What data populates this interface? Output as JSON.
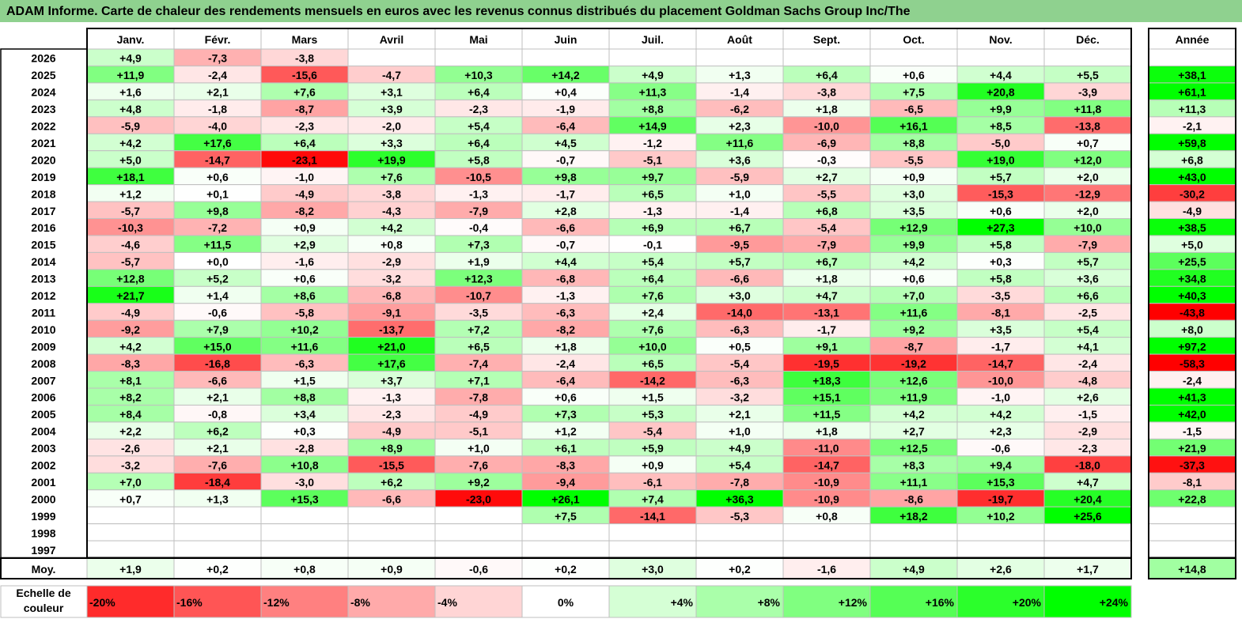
{
  "title": "ADAM Informe. Carte de chaleur des rendements mensuels en euros avec les revenus connus distribués du placement Goldman Sachs Group Inc/The",
  "chart_data": {
    "type": "heatmap",
    "title": "ADAM Informe. Carte de chaleur des rendements mensuels en euros avec les revenus connus distribués du placement Goldman Sachs Group Inc/The",
    "columns": [
      "Janv.",
      "Févr.",
      "Mars",
      "Avril",
      "Mai",
      "Juin",
      "Juil.",
      "Août",
      "Sept.",
      "Oct.",
      "Nov.",
      "Déc."
    ],
    "year_column": "Année",
    "rows": [
      {
        "year": "2026",
        "values": [
          4.9,
          -7.3,
          -3.8,
          null,
          null,
          null,
          null,
          null,
          null,
          null,
          null,
          null
        ],
        "total": null
      },
      {
        "year": "2025",
        "values": [
          11.9,
          -2.4,
          -15.6,
          -4.7,
          10.3,
          14.2,
          4.9,
          1.3,
          6.4,
          0.6,
          4.4,
          5.5
        ],
        "total": 38.1
      },
      {
        "year": "2024",
        "values": [
          1.6,
          2.1,
          7.6,
          3.1,
          6.4,
          0.4,
          11.3,
          -1.4,
          -3.8,
          7.5,
          20.8,
          -3.9
        ],
        "total": 61.1
      },
      {
        "year": "2023",
        "values": [
          4.8,
          -1.8,
          -8.7,
          3.9,
          -2.3,
          -1.9,
          8.8,
          -6.2,
          1.8,
          -6.5,
          9.9,
          11.8
        ],
        "total": 11.3
      },
      {
        "year": "2022",
        "values": [
          -5.9,
          -4.0,
          -2.3,
          -2.0,
          5.4,
          -6.4,
          14.9,
          2.3,
          -10.0,
          16.1,
          8.5,
          -13.8
        ],
        "total": -2.1
      },
      {
        "year": "2021",
        "values": [
          4.2,
          17.6,
          6.4,
          3.3,
          6.4,
          4.5,
          -1.2,
          11.6,
          -6.9,
          8.8,
          -5.0,
          0.7
        ],
        "total": 59.8
      },
      {
        "year": "2020",
        "values": [
          5.0,
          -14.7,
          -23.1,
          19.9,
          5.8,
          -0.7,
          -5.1,
          3.6,
          -0.3,
          -5.5,
          19.0,
          12.0
        ],
        "total": 6.8
      },
      {
        "year": "2019",
        "values": [
          18.1,
          0.6,
          -1.0,
          7.6,
          -10.5,
          9.8,
          9.7,
          -5.9,
          2.7,
          0.9,
          5.7,
          2.0
        ],
        "total": 43.0
      },
      {
        "year": "2018",
        "values": [
          1.2,
          0.1,
          -4.9,
          -3.8,
          -1.3,
          -1.7,
          6.5,
          1.0,
          -5.5,
          3.0,
          -15.3,
          -12.9
        ],
        "total": -30.2
      },
      {
        "year": "2017",
        "values": [
          -5.7,
          9.8,
          -8.2,
          -4.3,
          -7.9,
          2.8,
          -1.3,
          -1.4,
          6.8,
          3.5,
          0.6,
          2.0
        ],
        "total": -4.9
      },
      {
        "year": "2016",
        "values": [
          -10.3,
          -7.2,
          0.9,
          4.2,
          -0.4,
          -6.6,
          6.9,
          6.7,
          -5.4,
          12.9,
          27.3,
          10.0
        ],
        "total": 38.5
      },
      {
        "year": "2015",
        "values": [
          -4.6,
          11.5,
          2.9,
          0.8,
          7.3,
          -0.7,
          -0.1,
          -9.5,
          -7.9,
          9.9,
          5.8,
          -7.9
        ],
        "total": 5.0
      },
      {
        "year": "2014",
        "values": [
          -5.7,
          0.0,
          -1.6,
          -2.9,
          1.9,
          4.4,
          5.4,
          5.7,
          6.7,
          4.2,
          0.3,
          5.7
        ],
        "total": 25.5
      },
      {
        "year": "2013",
        "values": [
          12.8,
          5.2,
          0.6,
          -3.2,
          12.3,
          -6.8,
          6.4,
          -6.6,
          1.8,
          0.6,
          5.8,
          3.6
        ],
        "total": 34.8
      },
      {
        "year": "2012",
        "values": [
          21.7,
          1.4,
          8.6,
          -6.8,
          -10.7,
          -1.3,
          7.6,
          3.0,
          4.7,
          7.0,
          -3.5,
          6.6
        ],
        "total": 40.3
      },
      {
        "year": "2011",
        "values": [
          -4.9,
          -0.6,
          -5.8,
          -9.1,
          -3.5,
          -6.3,
          2.4,
          -14.0,
          -13.1,
          11.6,
          -8.1,
          -2.5
        ],
        "total": -43.8
      },
      {
        "year": "2010",
        "values": [
          -9.2,
          7.9,
          10.2,
          -13.7,
          7.2,
          -8.2,
          7.6,
          -6.3,
          -1.7,
          9.2,
          3.5,
          5.4
        ],
        "total": 8.0
      },
      {
        "year": "2009",
        "values": [
          4.2,
          15.0,
          11.6,
          21.0,
          6.5,
          1.8,
          10.0,
          0.5,
          9.1,
          -8.7,
          -1.7,
          4.1
        ],
        "total": 97.2
      },
      {
        "year": "2008",
        "values": [
          -8.3,
          -16.8,
          -6.3,
          17.6,
          -7.4,
          -2.4,
          6.5,
          -5.4,
          -19.5,
          -19.2,
          -14.7,
          -2.4
        ],
        "total": -58.3
      },
      {
        "year": "2007",
        "values": [
          8.1,
          -6.6,
          1.5,
          3.7,
          7.1,
          -6.4,
          -14.2,
          -6.3,
          18.3,
          12.6,
          -10.0,
          -4.8
        ],
        "total": -2.4
      },
      {
        "year": "2006",
        "values": [
          8.2,
          2.1,
          8.8,
          -1.3,
          -7.8,
          0.6,
          1.5,
          -3.2,
          15.1,
          11.9,
          -1.0,
          2.6
        ],
        "total": 41.3
      },
      {
        "year": "2005",
        "values": [
          8.4,
          -0.8,
          3.4,
          -2.3,
          -4.9,
          7.3,
          5.3,
          2.1,
          11.5,
          4.2,
          4.2,
          -1.5
        ],
        "total": 42.0
      },
      {
        "year": "2004",
        "values": [
          2.2,
          6.2,
          0.3,
          -4.9,
          -5.1,
          1.2,
          -5.4,
          1.0,
          1.8,
          2.7,
          2.3,
          -2.9
        ],
        "total": -1.5
      },
      {
        "year": "2003",
        "values": [
          -2.6,
          2.1,
          -2.8,
          8.9,
          1.0,
          6.1,
          5.9,
          4.9,
          -11.0,
          12.5,
          -0.6,
          -2.3
        ],
        "total": 21.9
      },
      {
        "year": "2002",
        "values": [
          -3.2,
          -7.6,
          10.8,
          -15.5,
          -7.6,
          -8.3,
          0.9,
          5.4,
          -14.7,
          8.3,
          9.4,
          -18.0
        ],
        "total": -37.3
      },
      {
        "year": "2001",
        "values": [
          7.0,
          -18.4,
          -3.0,
          6.2,
          9.2,
          -9.4,
          -6.1,
          -7.8,
          -10.9,
          11.1,
          15.3,
          4.7
        ],
        "total": -8.1
      },
      {
        "year": "2000",
        "values": [
          0.7,
          1.3,
          15.3,
          -6.6,
          -23.0,
          26.1,
          7.4,
          36.3,
          -10.9,
          -8.6,
          -19.7,
          20.4
        ],
        "total": 22.8
      },
      {
        "year": "1999",
        "values": [
          null,
          null,
          null,
          null,
          null,
          7.5,
          -14.1,
          -5.3,
          0.8,
          18.2,
          10.2,
          25.6
        ],
        "total": null
      },
      {
        "year": "1998",
        "values": [
          null,
          null,
          null,
          null,
          null,
          null,
          null,
          null,
          null,
          null,
          null,
          null
        ],
        "total": null
      },
      {
        "year": "1997",
        "values": [
          null,
          null,
          null,
          null,
          null,
          null,
          null,
          null,
          null,
          null,
          null,
          null
        ],
        "total": null
      }
    ],
    "average": {
      "label": "Moy.",
      "values": [
        1.9,
        0.2,
        0.8,
        0.9,
        -0.6,
        0.2,
        3.0,
        0.2,
        -1.6,
        4.9,
        2.6,
        1.7
      ],
      "total": 14.8
    },
    "color_scale": {
      "label": "Echelle de couleur",
      "steps": [
        {
          "label": "-20%",
          "value": -20
        },
        {
          "label": "-16%",
          "value": -16
        },
        {
          "label": "-12%",
          "value": -12
        },
        {
          "label": "-8%",
          "value": -8
        },
        {
          "label": "-4%",
          "value": -4
        },
        {
          "label": "0%",
          "value": 0
        },
        {
          "label": "+4%",
          "value": 4
        },
        {
          "label": "+8%",
          "value": 8
        },
        {
          "label": "+12%",
          "value": 12
        },
        {
          "label": "+16%",
          "value": 16
        },
        {
          "label": "+20%",
          "value": 20
        },
        {
          "label": "+24%",
          "value": 24
        }
      ]
    },
    "colors": {
      "negative_max": "#ff0000",
      "neutral": "#ffffff",
      "positive_max": "#00ff00",
      "grid": "#bfbfbf",
      "title_bg": "#8fd18f"
    }
  }
}
